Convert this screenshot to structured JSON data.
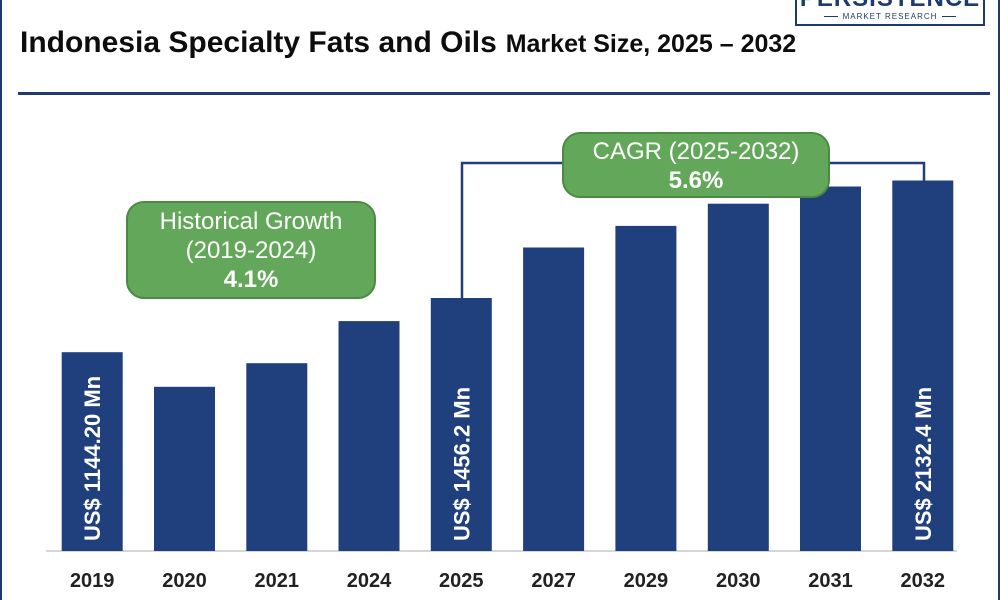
{
  "header": {
    "title_main": "Indonesia Specialty Fats and Oils",
    "title_sub": "Market Size, 2025 – 2032",
    "logo_word": "PERSISTENCE",
    "logo_sub": "MARKET RESEARCH"
  },
  "callouts": {
    "historical": {
      "label_line1": "Historical Growth",
      "label_line2": "(2019-2024)",
      "value": "4.1%"
    },
    "cagr": {
      "label": "CAGR (2025-2032)",
      "value": "5.6%"
    }
  },
  "colors": {
    "bar": "#203f7d",
    "callout": "#63a85a",
    "rule": "#1f3a6e",
    "baseline": "#c8c8c8"
  },
  "chart_data": {
    "type": "bar",
    "title": "Indonesia Specialty Fats and Oils Market Size, 2025 – 2032",
    "xlabel": "",
    "ylabel": "",
    "categories": [
      "2019",
      "2020",
      "2021",
      "2024",
      "2025",
      "2027",
      "2029",
      "2030",
      "2031",
      "2032"
    ],
    "values": [
      1144.2,
      945,
      1081,
      1323,
      1456.2,
      1747,
      1871,
      1999,
      2098,
      2132.4
    ],
    "units": "US$ Mn",
    "bar_labels": [
      {
        "category": "2019",
        "text": "US$ 1144.20 Mn"
      },
      {
        "category": "2025",
        "text": "US$ 1456.2 Mn"
      },
      {
        "category": "2032",
        "text": "US$ 2132.4 Mn"
      }
    ],
    "ylim": [
      0,
      2400
    ],
    "grid": false,
    "legend": "none"
  }
}
